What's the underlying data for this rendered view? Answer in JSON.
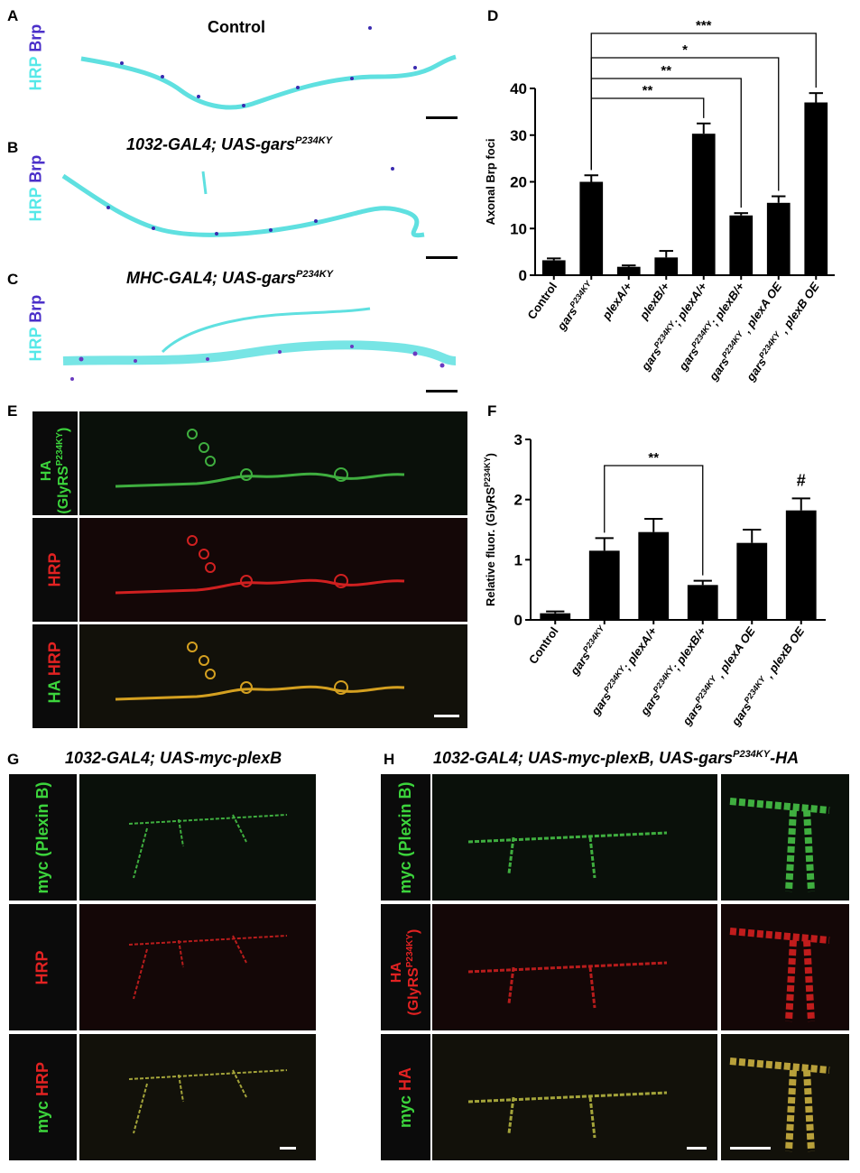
{
  "panels": {
    "A": {
      "letter": "A",
      "title": "Control",
      "stain_1": "HRP",
      "stain_2": "Brp"
    },
    "B": {
      "letter": "B",
      "title_main": "1032-GAL4; UAS-gars",
      "title_sup": "P234KY",
      "stain_1": "HRP",
      "stain_2": "Brp"
    },
    "C": {
      "letter": "C",
      "title_main": "MHC-GAL4; UAS-gars",
      "title_sup": "P234KY",
      "stain_1": "HRP",
      "stain_2": "Brp"
    },
    "D": {
      "letter": "D"
    },
    "E": {
      "letter": "E",
      "row1_a": "HA",
      "row1_b": "(GlyRS",
      "row1_sup": "P234KY",
      "row1_c": ")",
      "row2": "HRP",
      "row3_a": "HA",
      "row3_b": "HRP"
    },
    "F": {
      "letter": "F"
    },
    "G": {
      "letter": "G",
      "title": "1032-GAL4; UAS-myc-plexB",
      "row1": "myc (Plexin B)",
      "row2": "HRP",
      "row3_a": "myc",
      "row3_b": "HRP"
    },
    "H": {
      "letter": "H",
      "title_main": "1032-GAL4; UAS-myc-plexB, UAS-gars",
      "title_sup": "P234KY",
      "title_end": "-HA",
      "row1": "myc (Plexin B)",
      "row2_a": "HA",
      "row2_b": "(GlyRS",
      "row2_sup": "P234KY",
      "row2_c": ")",
      "row3_a": "myc",
      "row3_b": "HA"
    }
  },
  "chart_data": [
    {
      "panel": "D",
      "type": "bar",
      "ylabel": "Axonal Brp foci",
      "ylim": [
        0,
        40
      ],
      "yticks": [
        0,
        10,
        20,
        30,
        40
      ],
      "categories": [
        "Control",
        "gars^P234KY",
        "plexA/+",
        "plexB/+",
        "gars^P234KY; plexA/+",
        "gars^P234KY; plexB/+",
        "gars^P234KY , plexA OE",
        "gars^P234KY , plexB OE"
      ],
      "values": [
        3.2,
        20,
        1.8,
        3.8,
        30.3,
        12.8,
        15.5,
        37
      ],
      "errors": [
        0.4,
        1.4,
        0.3,
        1.4,
        2.2,
        0.5,
        1.4,
        2.0
      ],
      "comparisons": [
        {
          "from": 1,
          "to": 4,
          "label": "**"
        },
        {
          "from": 1,
          "to": 5,
          "label": "**"
        },
        {
          "from": 1,
          "to": 6,
          "label": "*"
        },
        {
          "from": 1,
          "to": 7,
          "label": "***"
        }
      ]
    },
    {
      "panel": "F",
      "type": "bar",
      "ylabel": "Relative fluor. (GlyRS^P234KY)",
      "ylim": [
        0,
        3
      ],
      "yticks": [
        0,
        1,
        2,
        3
      ],
      "categories": [
        "Control",
        "gars^P234KY",
        "gars^P234KY; plexA/+",
        "gars^P234KY; plexB/+",
        "gars^P234KY , plexA OE",
        "gars^P234KY , plexB OE"
      ],
      "values": [
        0.11,
        1.15,
        1.46,
        0.58,
        1.28,
        1.82
      ],
      "errors": [
        0.03,
        0.21,
        0.22,
        0.07,
        0.22,
        0.2
      ],
      "comparisons": [
        {
          "from": 1,
          "to": 3,
          "label": "**"
        }
      ],
      "annotations": [
        {
          "index": 5,
          "label": "#"
        }
      ]
    }
  ]
}
